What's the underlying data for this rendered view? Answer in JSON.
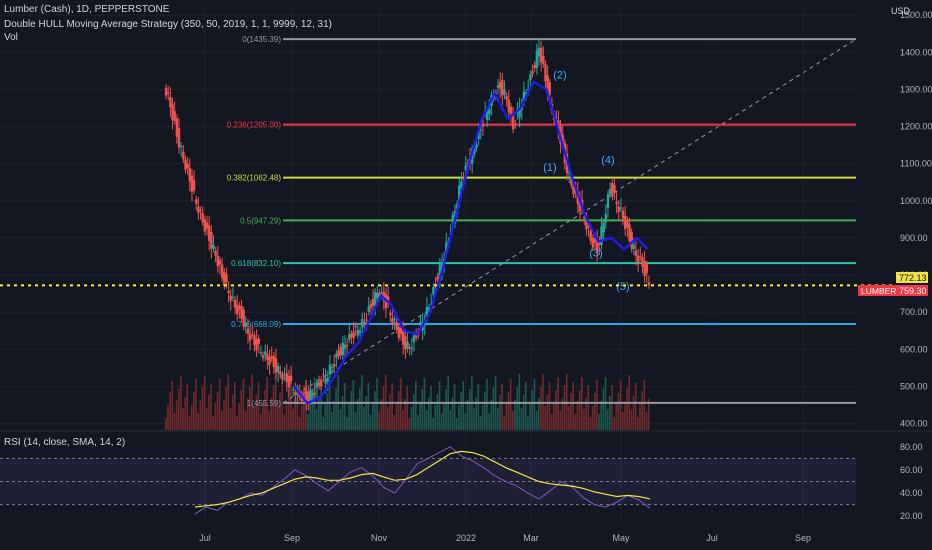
{
  "header": {
    "line1": "Lumber (Cash), 1D, PEPPERSTONE",
    "line2": "Double HULL Moving Average Strategy (350, 50, 2019, 1, 1, 9999, 12, 31)",
    "line3": "Vol",
    "currency": "USD"
  },
  "rsi_header": "RSI (14, close, SMA, 14, 2)",
  "price_badges": {
    "current_price": "772.13",
    "symbol_tag": "LUMBER",
    "symbol_price": "759.30"
  },
  "colors": {
    "background": "#131722",
    "bull": "#26a69a",
    "bear": "#ef5350",
    "hull": "#1c1cf0",
    "dotted_line": "#ffeb3b",
    "rsi": "#7e57c2",
    "rsi_ma": "#f0e442"
  },
  "chart_data": [
    {
      "type": "candlestick",
      "title": "Lumber (Cash), 1D, PEPPERSTONE",
      "y_axis": {
        "label": "USD",
        "range": [
          380,
          1530
        ],
        "ticks": [
          400,
          500,
          600,
          700,
          800,
          900,
          1000,
          1100,
          1200,
          1300,
          1400,
          1500
        ],
        "tick_labels": [
          "400.00",
          "500.00",
          "600.00",
          "700.00",
          "800.00",
          "900.00",
          "1000.00",
          "1100.00",
          "1200.00",
          "1300.00",
          "1400.00",
          "1500.00"
        ]
      },
      "x_axis": {
        "tick_labels": [
          "Jul",
          "Sep",
          "Nov",
          "2022",
          "Mar",
          "May",
          "Jul",
          "Sep"
        ]
      },
      "fibonacci_levels": [
        {
          "label": "0(1435.39)",
          "value": 1435.39,
          "color": "#9598a1"
        },
        {
          "label": "0.236(1205.00)",
          "value": 1205.0,
          "color": "#f23645"
        },
        {
          "label": "0.382(1062.48)",
          "value": 1062.48,
          "color": "#cddc39"
        },
        {
          "label": "0.5(947.29)",
          "value": 947.29,
          "color": "#4caf50"
        },
        {
          "label": "0.618(832.10)",
          "value": 832.1,
          "color": "#26c6a4"
        },
        {
          "label": "0.786(668.09)",
          "value": 668.09,
          "color": "#2ea7e0"
        },
        {
          "label": "1(455.59)",
          "value": 455.59,
          "color": "#9598a1"
        }
      ],
      "horizontal_line": {
        "value": 772.13,
        "style": "dotted"
      },
      "trendline": {
        "from_value": 455.59,
        "to_value": 1435.39,
        "style": "dashed"
      },
      "wave_labels": [
        "(1)",
        "(2)",
        "(3)",
        "(4)",
        "(5)"
      ],
      "wave_label_values": [
        1080,
        1330,
        850,
        1100,
        760
      ],
      "price_series": [
        {
          "t": 0,
          "v": 1320
        },
        {
          "t": 0.5,
          "v": 1260
        },
        {
          "t": 1,
          "v": 1180
        },
        {
          "t": 1.5,
          "v": 1120
        },
        {
          "t": 2,
          "v": 1060
        },
        {
          "t": 2.5,
          "v": 1000
        },
        {
          "t": 3,
          "v": 950
        },
        {
          "t": 3.5,
          "v": 900
        },
        {
          "t": 4,
          "v": 860
        },
        {
          "t": 4.5,
          "v": 800
        },
        {
          "t": 5,
          "v": 760
        },
        {
          "t": 5.5,
          "v": 720
        },
        {
          "t": 6,
          "v": 690
        },
        {
          "t": 6.5,
          "v": 650
        },
        {
          "t": 7,
          "v": 620
        },
        {
          "t": 7.5,
          "v": 600
        },
        {
          "t": 8,
          "v": 580
        },
        {
          "t": 8.5,
          "v": 560
        },
        {
          "t": 9,
          "v": 540
        },
        {
          "t": 9.5,
          "v": 520
        },
        {
          "t": 10,
          "v": 500
        },
        {
          "t": 10.5,
          "v": 480
        },
        {
          "t": 11,
          "v": 470
        },
        {
          "t": 11.5,
          "v": 490
        },
        {
          "t": 12,
          "v": 510
        },
        {
          "t": 12.5,
          "v": 530
        },
        {
          "t": 13,
          "v": 560
        },
        {
          "t": 13.5,
          "v": 590
        },
        {
          "t": 14,
          "v": 620
        },
        {
          "t": 14.5,
          "v": 640
        },
        {
          "t": 15,
          "v": 660
        },
        {
          "t": 15.5,
          "v": 680
        },
        {
          "t": 16,
          "v": 720
        },
        {
          "t": 16.5,
          "v": 760
        },
        {
          "t": 17,
          "v": 740
        },
        {
          "t": 17.5,
          "v": 700
        },
        {
          "t": 18,
          "v": 660
        },
        {
          "t": 18.5,
          "v": 620
        },
        {
          "t": 19,
          "v": 610
        },
        {
          "t": 19.5,
          "v": 640
        },
        {
          "t": 20,
          "v": 680
        },
        {
          "t": 20.5,
          "v": 720
        },
        {
          "t": 21,
          "v": 780
        },
        {
          "t": 21.5,
          "v": 840
        },
        {
          "t": 22,
          "v": 900
        },
        {
          "t": 22.5,
          "v": 980
        },
        {
          "t": 23,
          "v": 1060
        },
        {
          "t": 23.5,
          "v": 1100
        },
        {
          "t": 24,
          "v": 1150
        },
        {
          "t": 24.5,
          "v": 1200
        },
        {
          "t": 25,
          "v": 1250
        },
        {
          "t": 25.5,
          "v": 1290
        },
        {
          "t": 26,
          "v": 1310
        },
        {
          "t": 26.5,
          "v": 1280
        },
        {
          "t": 27,
          "v": 1200
        },
        {
          "t": 27.5,
          "v": 1260
        },
        {
          "t": 28,
          "v": 1300
        },
        {
          "t": 28.5,
          "v": 1350
        },
        {
          "t": 29,
          "v": 1420
        },
        {
          "t": 29.5,
          "v": 1330
        },
        {
          "t": 30,
          "v": 1250
        },
        {
          "t": 30.5,
          "v": 1200
        },
        {
          "t": 31,
          "v": 1110
        },
        {
          "t": 31.5,
          "v": 1050
        },
        {
          "t": 32,
          "v": 1000
        },
        {
          "t": 32.5,
          "v": 960
        },
        {
          "t": 33,
          "v": 900
        },
        {
          "t": 33.5,
          "v": 870
        },
        {
          "t": 34,
          "v": 950
        },
        {
          "t": 34.5,
          "v": 1040
        },
        {
          "t": 35,
          "v": 1000
        },
        {
          "t": 35.5,
          "v": 960
        },
        {
          "t": 36,
          "v": 900
        },
        {
          "t": 36.5,
          "v": 860
        },
        {
          "t": 37,
          "v": 830
        },
        {
          "t": 37.5,
          "v": 780
        }
      ],
      "hull_ma": [
        {
          "t": 10,
          "v": 500
        },
        {
          "t": 11,
          "v": 455
        },
        {
          "t": 12,
          "v": 470
        },
        {
          "t": 13,
          "v": 520
        },
        {
          "t": 14,
          "v": 580
        },
        {
          "t": 15,
          "v": 620
        },
        {
          "t": 16,
          "v": 690
        },
        {
          "t": 16.7,
          "v": 745
        },
        {
          "t": 17.5,
          "v": 720
        },
        {
          "t": 18.5,
          "v": 650
        },
        {
          "t": 19.5,
          "v": 640
        },
        {
          "t": 20.5,
          "v": 700
        },
        {
          "t": 21.5,
          "v": 820
        },
        {
          "t": 22.5,
          "v": 960
        },
        {
          "t": 23.5,
          "v": 1100
        },
        {
          "t": 24.5,
          "v": 1220
        },
        {
          "t": 25.5,
          "v": 1290
        },
        {
          "t": 26.5,
          "v": 1220
        },
        {
          "t": 27.5,
          "v": 1250
        },
        {
          "t": 28.5,
          "v": 1320
        },
        {
          "t": 29.5,
          "v": 1300
        },
        {
          "t": 30.5,
          "v": 1180
        },
        {
          "t": 31.5,
          "v": 1060
        },
        {
          "t": 32.5,
          "v": 960
        },
        {
          "t": 33.5,
          "v": 890
        },
        {
          "t": 34.5,
          "v": 900
        },
        {
          "t": 35.5,
          "v": 870
        },
        {
          "t": 36.5,
          "v": 900
        },
        {
          "t": 37.3,
          "v": 870
        }
      ]
    },
    {
      "type": "line",
      "title": "RSI (14, close, SMA, 14, 2)",
      "y_axis": {
        "range": [
          15,
          85
        ],
        "ticks": [
          20,
          40,
          60,
          80
        ],
        "tick_labels": [
          "20.00",
          "40.00",
          "60.00",
          "80.00"
        ],
        "band": [
          30,
          70
        ]
      },
      "series": [
        {
          "name": "RSI",
          "values": [
            22,
            28,
            25,
            32,
            35,
            40,
            38,
            45,
            52,
            60,
            55,
            48,
            42,
            50,
            58,
            62,
            55,
            45,
            40,
            52,
            65,
            70,
            75,
            80,
            72,
            68,
            62,
            55,
            50,
            46,
            40,
            35,
            42,
            50,
            45,
            36,
            30,
            28,
            32,
            38,
            34,
            27
          ]
        },
        {
          "name": "RSI-based MA",
          "values": [
            28,
            29,
            30,
            32,
            35,
            38,
            40,
            44,
            48,
            52,
            54,
            53,
            51,
            51,
            53,
            56,
            57,
            54,
            51,
            52,
            56,
            62,
            68,
            74,
            76,
            75,
            72,
            67,
            62,
            58,
            54,
            50,
            48,
            47,
            46,
            44,
            41,
            39,
            37,
            38,
            37,
            35
          ]
        }
      ]
    }
  ]
}
